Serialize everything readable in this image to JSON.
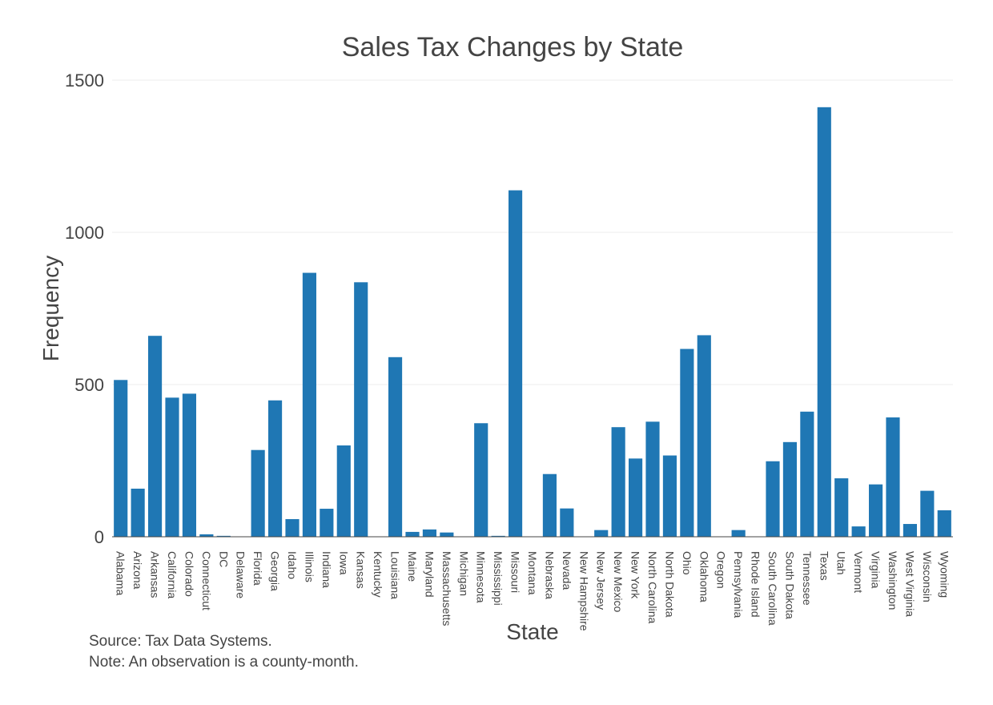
{
  "chart_data": {
    "type": "bar",
    "title": "Sales Tax Changes by State",
    "xlabel": "State",
    "ylabel": "Frequency",
    "ylim": [
      0,
      1500
    ],
    "yticks": [
      0,
      500,
      1000,
      1500
    ],
    "grid": true,
    "categories": [
      "Alabama",
      "Arizona",
      "Arkansas",
      "California",
      "Colorado",
      "Connecticut",
      "DC",
      "Delaware",
      "Florida",
      "Georgia",
      "Idaho",
      "Illinois",
      "Indiana",
      "Iowa",
      "Kansas",
      "Kentucky",
      "Louisiana",
      "Maine",
      "Maryland",
      "Massachusetts",
      "Michigan",
      "Minnesota",
      "Mississippi",
      "Missouri",
      "Montana",
      "Nebraska",
      "Nevada",
      "New Hampshire",
      "New Jersey",
      "New Mexico",
      "New York",
      "North Carolina",
      "North Dakota",
      "Ohio",
      "Oklahoma",
      "Oregon",
      "Pennsylvania",
      "Rhode Island",
      "South Carolina",
      "South Dakota",
      "Tennessee",
      "Texas",
      "Utah",
      "Vermont",
      "Virginia",
      "Washington",
      "West Virginia",
      "Wisconsin",
      "Wyoming"
    ],
    "values": [
      515,
      158,
      660,
      457,
      470,
      8,
      3,
      0,
      285,
      448,
      58,
      867,
      92,
      300,
      836,
      0,
      590,
      16,
      24,
      14,
      0,
      373,
      3,
      1138,
      0,
      206,
      93,
      0,
      22,
      360,
      257,
      378,
      267,
      617,
      662,
      0,
      22,
      0,
      248,
      311,
      411,
      1411,
      192,
      34,
      172,
      392,
      42,
      151,
      87
    ],
    "annotations": [
      "Source: Tax Data Systems.",
      "Note: An observation is a county-month."
    ]
  }
}
